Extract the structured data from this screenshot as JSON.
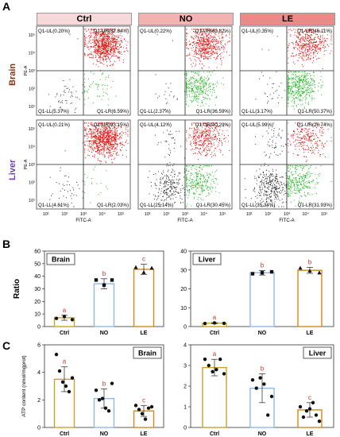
{
  "panel_labels": {
    "a": "A",
    "b": "B",
    "c": "C"
  },
  "headers": {
    "ctrl": "Ctrl",
    "no": "NO",
    "le": "LE"
  },
  "header_colors": {
    "ctrl": "#f7d9d9",
    "no": "#f3b3b3",
    "le": "#ec8a8a"
  },
  "row_labels": {
    "brain": "Brain",
    "liver": "Liver"
  },
  "row_label_colors": {
    "brain": "#8b2e12",
    "liver": "#6a3fb3"
  },
  "flow_axes": {
    "x_label": "FITC-A",
    "y_label": "PE-A",
    "x_ticks": [
      "10¹",
      "10²",
      "10³",
      "10⁴",
      "10⁵"
    ],
    "y_ticks": [
      "10¹",
      "10²",
      "10³",
      "10⁴",
      "10⁵"
    ]
  },
  "chart_data": [
    {
      "type": "scatter",
      "panel": "A",
      "row": "Brain",
      "group": "Ctrl",
      "quadrants": {
        "UL": "Q1-UL(0.20%)",
        "UR": "Q1-UR(87.84%)",
        "LL": "Q1-LL(5.37%)",
        "LR": "Q1-LR(6.59%)"
      },
      "values": {
        "UL": 0.2,
        "UR": 87.84,
        "LL": 5.37,
        "LR": 6.59
      }
    },
    {
      "type": "scatter",
      "panel": "A",
      "row": "Brain",
      "group": "NO",
      "quadrants": {
        "UL": "Q1-UL(0.22%)",
        "UR": "Q1-UR(60.82%)",
        "LL": "Q1-LL(2.37%)",
        "LR": "Q1-LR(36.59%)"
      },
      "values": {
        "UL": 0.22,
        "UR": 60.82,
        "LL": 2.37,
        "LR": 36.59
      }
    },
    {
      "type": "scatter",
      "panel": "A",
      "row": "Brain",
      "group": "LE",
      "quadrants": {
        "UL": "Q1-UL(0.35%)",
        "UR": "Q1-UR(46.11%)",
        "LL": "Q1-LL(3.17%)",
        "LR": "Q1-LR(50.37%)"
      },
      "values": {
        "UL": 0.35,
        "UR": 46.11,
        "LL": 3.17,
        "LR": 50.37
      }
    },
    {
      "type": "scatter",
      "panel": "A",
      "row": "Liver",
      "group": "Ctrl",
      "quadrants": {
        "UL": "Q1-UL(0.21%)",
        "UR": "Q1-UR(93.15%)",
        "LL": "Q1-LL(4.61%)",
        "LR": "Q1-LR(2.03%)"
      },
      "values": {
        "UL": 0.21,
        "UR": 93.15,
        "LL": 4.61,
        "LR": 2.03
      }
    },
    {
      "type": "scatter",
      "panel": "A",
      "row": "Liver",
      "group": "NO",
      "quadrants": {
        "UL": "Q1-UL(4.12%)",
        "UR": "Q1-UR(40.29%)",
        "LL": "Q1-LL(25.14%)",
        "LR": "Q1-LR(30.45%)"
      },
      "values": {
        "UL": 4.12,
        "UR": 40.29,
        "LL": 25.14,
        "LR": 30.45
      }
    },
    {
      "type": "scatter",
      "panel": "A",
      "row": "Liver",
      "group": "LE",
      "quadrants": {
        "UL": "Q1-UL(5.99%)",
        "UR": "Q1-UR(26.74%)",
        "LL": "Q1-LL(35.34%)",
        "LR": "Q1-LR(31.93%)"
      },
      "values": {
        "UL": 5.99,
        "UR": 26.74,
        "LL": 35.34,
        "LR": 31.93
      }
    },
    {
      "type": "bar",
      "panel": "B",
      "title": "Brain",
      "ylabel": "Ratio",
      "ylim": [
        0,
        60
      ],
      "yticks": [
        0,
        10,
        20,
        30,
        40,
        50,
        60
      ],
      "categories": [
        "Ctrl",
        "NO",
        "LE"
      ],
      "values": [
        7,
        34,
        45.5
      ],
      "sd": [
        2,
        4,
        4
      ],
      "letters": [
        "a",
        "b",
        "c"
      ],
      "points": [
        [
          6.5,
          8,
          5.5
        ],
        [
          37,
          33,
          37
        ],
        [
          47,
          43,
          46.5
        ]
      ]
    },
    {
      "type": "bar",
      "panel": "B",
      "title": "Liver",
      "ylim": [
        0,
        40
      ],
      "yticks": [
        0,
        10,
        20,
        30,
        40
      ],
      "categories": [
        "Ctrl",
        "NO",
        "LE"
      ],
      "values": [
        1.8,
        28.5,
        29.8
      ],
      "sd": [
        0.3,
        1.2,
        1.6
      ],
      "letters": [
        "a",
        "b",
        "b"
      ],
      "points": [
        [
          1.6,
          1.9,
          1.7
        ],
        [
          28,
          28.5,
          29
        ],
        [
          31,
          29.5,
          28.5
        ]
      ]
    },
    {
      "type": "bar",
      "panel": "C",
      "title": "Brain",
      "ylabel": "ATP content (nmol/mgprot)",
      "ylim": [
        0,
        6
      ],
      "yticks": [
        0,
        2,
        4,
        6
      ],
      "categories": [
        "Ctrl",
        "NO",
        "LE"
      ],
      "values": [
        3.5,
        2.1,
        1.2
      ],
      "sd": [
        0.9,
        0.7,
        0.4
      ],
      "letters": [
        "a",
        "b",
        "c"
      ],
      "points": [
        [
          5.3,
          4.1,
          3.3,
          3.0,
          2.6,
          3.6
        ],
        [
          2.7,
          2.0,
          2.1,
          1.4,
          1.2,
          3.2
        ],
        [
          1.6,
          1.3,
          1.0,
          0.6,
          1.4,
          1.5
        ]
      ]
    },
    {
      "type": "bar",
      "panel": "C",
      "title": "Liver",
      "ylim": [
        0,
        4
      ],
      "yticks": [
        0,
        1,
        2,
        3,
        4
      ],
      "categories": [
        "Ctrl",
        "NO",
        "LE"
      ],
      "values": [
        2.9,
        1.9,
        0.85
      ],
      "sd": [
        0.4,
        0.7,
        0.35
      ],
      "letters": [
        "a",
        "b",
        "c"
      ],
      "points": [
        [
          3.3,
          3.0,
          2.7,
          2.8,
          3.3,
          2.6
        ],
        [
          2.3,
          1.9,
          2.4,
          2.1,
          0.6,
          1.5
        ],
        [
          1.0,
          0.5,
          0.8,
          0.9,
          1.2,
          0.6,
          0.3
        ]
      ]
    }
  ],
  "bar_colors": [
    "#c9a227",
    "#8fb8e8",
    "#d08a20"
  ]
}
